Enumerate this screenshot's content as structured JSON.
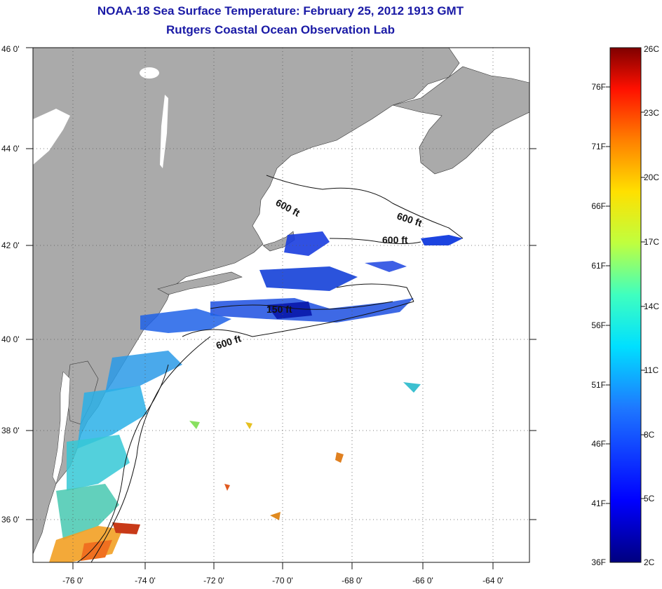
{
  "title": "NOAA-18 Sea Surface Temperature:  February 25, 2012 1913 GMT",
  "subtitle": "Rutgers Coastal Ocean Observation Lab",
  "map": {
    "lon_labels": [
      "-76 0'",
      "-74 0'",
      "-72 0'",
      "-70 0'",
      "-68 0'",
      "-66 0'",
      "-64 0'"
    ],
    "lat_labels": [
      "46 0'",
      "44 0'",
      "42 0'",
      "40 0'",
      "38 0'",
      "36 0'"
    ],
    "contour_labels": [
      "600 ft",
      "600 ft",
      "600 ft",
      "150 ft",
      "600 ft"
    ],
    "colors": {
      "land": "#aaaaaa",
      "ocean": "#ffffff",
      "title": "#1a1aa6"
    }
  },
  "colorbar": {
    "celsius_labels": [
      "26C",
      "23C",
      "20C",
      "17C",
      "14C",
      "11C",
      "8C",
      "5C",
      "2C"
    ],
    "fahrenheit_labels": [
      "76F",
      "71F",
      "66F",
      "61F",
      "56F",
      "51F",
      "46F",
      "41F",
      "36F"
    ]
  }
}
